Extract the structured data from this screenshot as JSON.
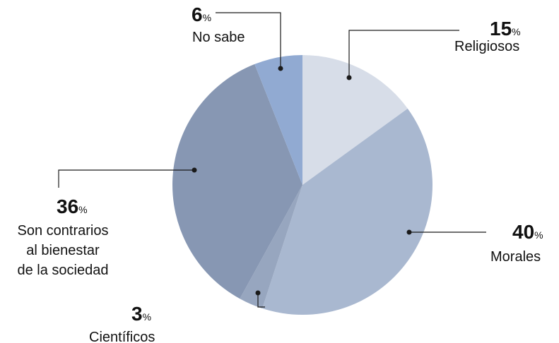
{
  "chart_data": {
    "type": "pie",
    "unit": "%",
    "slices": [
      {
        "label": "Religiosos",
        "lines": [
          "Religiosos"
        ],
        "value": 15,
        "color": "#d7dde8"
      },
      {
        "label": "Morales",
        "lines": [
          "Morales"
        ],
        "value": 40,
        "color": "#a9b8d0"
      },
      {
        "label": "Científicos",
        "lines": [
          "Científicos"
        ],
        "value": 3,
        "color": "#97a6bf"
      },
      {
        "label": "Son contrarios al bienestar de la sociedad",
        "lines": [
          "Son contrarios",
          "al bienestar",
          "de la sociedad"
        ],
        "value": 36,
        "color": "#8797b3"
      },
      {
        "label": "No sabe",
        "lines": [
          "No sabe"
        ],
        "value": 6,
        "color": "#91aad2"
      }
    ]
  }
}
